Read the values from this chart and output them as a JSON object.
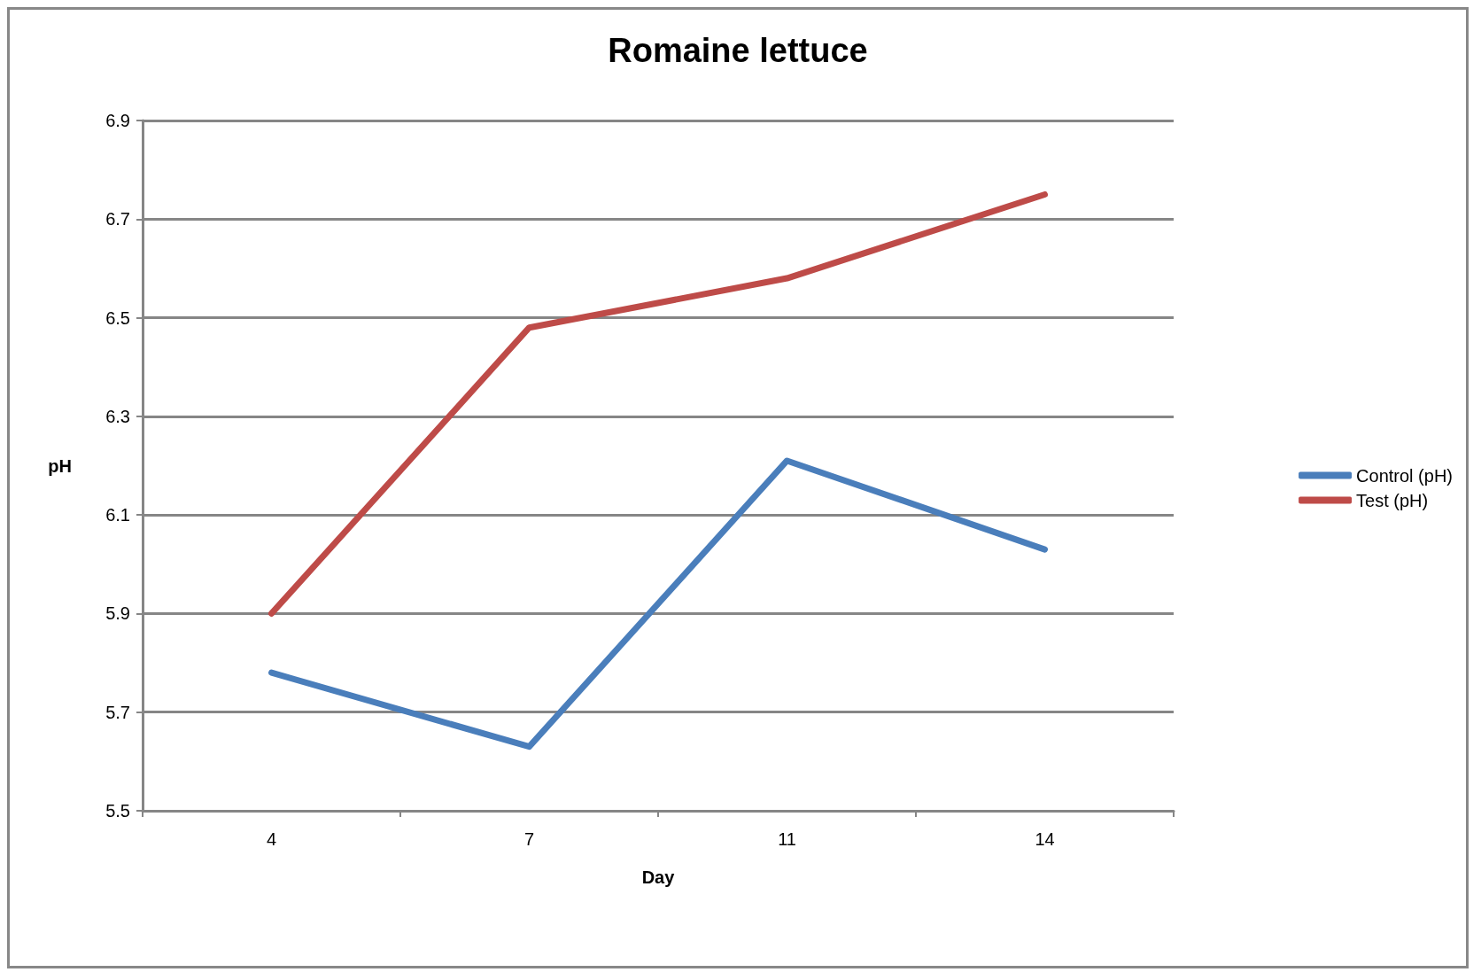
{
  "chart_data": {
    "type": "line",
    "title": "Romaine lettuce",
    "xlabel": "Day",
    "ylabel": "pH",
    "categories": [
      "4",
      "7",
      "11",
      "14"
    ],
    "series": [
      {
        "name": "Control (pH)",
        "color": "#4a7ebb",
        "values": [
          5.78,
          5.63,
          6.21,
          6.03
        ]
      },
      {
        "name": "Test (pH)",
        "color": "#be4b48",
        "values": [
          5.9,
          6.48,
          6.58,
          6.75
        ]
      }
    ],
    "ylim": [
      5.5,
      6.9
    ],
    "yticks": [
      5.5,
      5.7,
      5.9,
      6.1,
      6.3,
      6.5,
      6.7,
      6.9
    ],
    "grid": "y",
    "legend": "right",
    "marker": "none"
  }
}
